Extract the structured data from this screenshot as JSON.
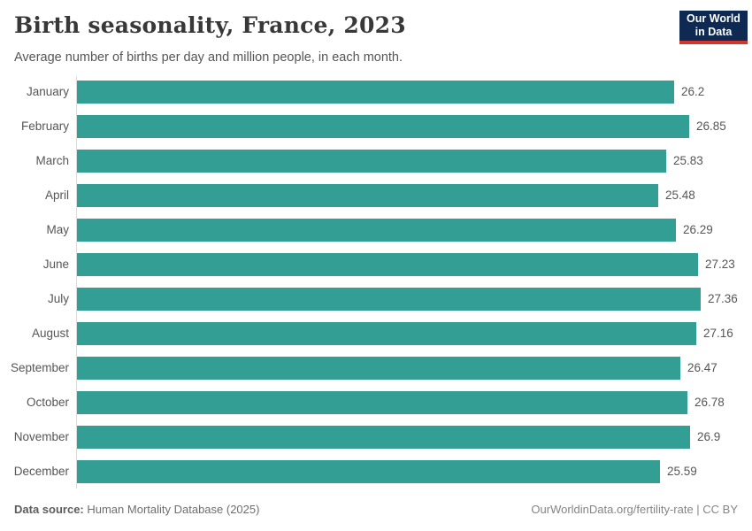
{
  "header": {
    "title": "Birth seasonality, France, 2023",
    "subtitle": "Average number of births per day and million people, in each month."
  },
  "logo": {
    "line1": "Our World",
    "line2": "in Data",
    "bg_color": "#0e2a52",
    "stripe_color": "#d1352c"
  },
  "chart_data": {
    "type": "bar",
    "orientation": "horizontal",
    "title": "Birth seasonality, France, 2023",
    "subtitle": "Average number of births per day and million people, in each month.",
    "categories": [
      "January",
      "February",
      "March",
      "April",
      "May",
      "June",
      "July",
      "August",
      "September",
      "October",
      "November",
      "December"
    ],
    "values": [
      26.2,
      26.85,
      25.83,
      25.48,
      26.29,
      27.23,
      27.36,
      27.16,
      26.47,
      26.78,
      26.9,
      25.59
    ],
    "value_labels": [
      "26.2",
      "26.85",
      "25.83",
      "25.48",
      "26.29",
      "27.23",
      "27.36",
      "27.16",
      "26.47",
      "26.78",
      "26.9",
      "25.59"
    ],
    "bar_color": "#339e94",
    "xlim": [
      0,
      27.36
    ],
    "grid": false,
    "legend": "none",
    "value_label_position": "end-of-bar"
  },
  "footer": {
    "source_label": "Data source:",
    "source_text": " Human Mortality Database (2025)",
    "right_text": "OurWorldinData.org/fertility-rate | CC BY"
  }
}
